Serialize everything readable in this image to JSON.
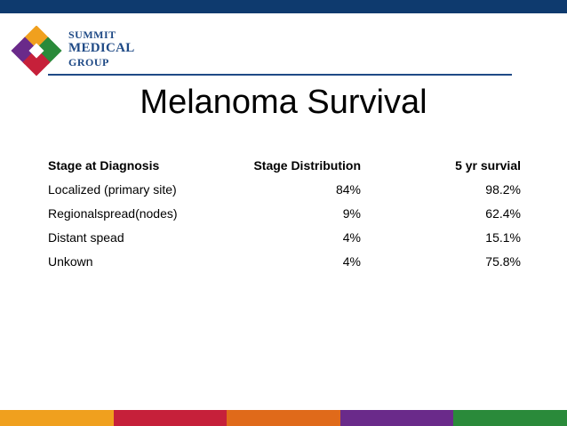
{
  "brand": {
    "logo_line1": "SUMMIT",
    "logo_line2": "MEDICAL",
    "logo_line3": "GROUP",
    "colors": {
      "top_bar": "#0e3a6e",
      "rule": "#1f4a86",
      "footer": [
        "#f0a01e",
        "#c6203a",
        "#e06a1a",
        "#6a2a8a",
        "#2a8a3a"
      ]
    }
  },
  "title": "Melanoma Survival",
  "table": {
    "headers": [
      "Stage at Diagnosis",
      "Stage Distribution",
      "5 yr survial"
    ],
    "rows": [
      [
        "Localized (primary site)",
        "84%",
        "98.2%"
      ],
      [
        "Regionalspread(nodes)",
        "9%",
        "62.4%"
      ],
      [
        "Distant spead",
        "4%",
        "15.1%"
      ],
      [
        "Unkown",
        "4%",
        "75.8%"
      ]
    ]
  }
}
